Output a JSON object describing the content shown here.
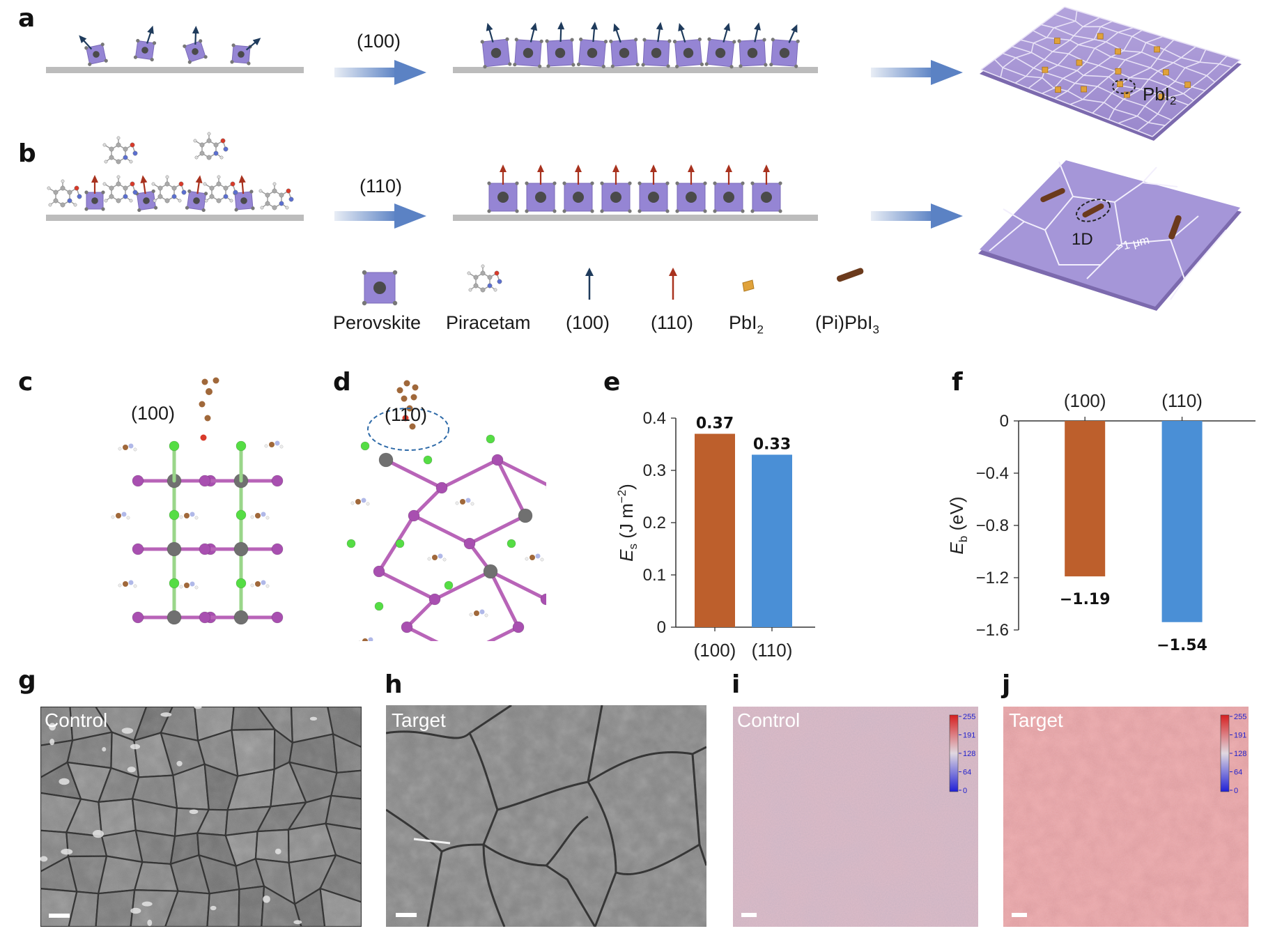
{
  "panels": {
    "a": "a",
    "b": "b",
    "c": "c",
    "d": "d",
    "e": "e",
    "f": "f",
    "g": "g",
    "h": "h",
    "i": "i",
    "j": "j"
  },
  "schematic": {
    "row_a_arrow_label": "(100)",
    "row_b_arrow_label": "(110)",
    "pbi2_label_main": "PbI",
    "pbi2_label_sub": "2",
    "label_1d": "1D",
    "label_grain": ">1 μm"
  },
  "legend": {
    "perovskite": "Perovskite",
    "piracetam": "Piracetam",
    "dir_100": "(100)",
    "dir_110": "(110)",
    "pbi2_main": "PbI",
    "pbi2_sub": "2",
    "pipbi3_main": "(Pi)PbI",
    "pipbi3_sub": "3"
  },
  "structures": {
    "c_label": "(100)",
    "d_label": "(110)"
  },
  "chart_data": [
    {
      "type": "bar",
      "panel": "e",
      "categories": [
        "(100)",
        "(110)"
      ],
      "values": [
        0.37,
        0.33
      ],
      "value_labels": [
        "0.37",
        "0.33"
      ],
      "ylabel_main": "E",
      "ylabel_sub": "s",
      "ylabel_unit": " (J m",
      "ylabel_sup": "−2",
      "ylabel_close": ")",
      "yticks": [
        "0",
        "0.1",
        "0.2",
        "0.3",
        "0.4"
      ],
      "ylim": [
        0,
        0.4
      ],
      "colors": [
        "#bd5f2c",
        "#4a8fd6"
      ]
    },
    {
      "type": "bar",
      "panel": "f",
      "categories": [
        "(100)",
        "(110)"
      ],
      "values": [
        -1.19,
        -1.54
      ],
      "value_labels": [
        "−1.19",
        "−1.54"
      ],
      "ylabel_main": "E",
      "ylabel_sub": "b",
      "ylabel_unit": " (eV)",
      "yticks": [
        "0",
        "−0.4",
        "−0.8",
        "−1.2",
        "−1.6"
      ],
      "ylim": [
        -1.6,
        0
      ],
      "colors": [
        "#bd5f2c",
        "#4a8fd6"
      ]
    }
  ],
  "images": {
    "g_label": "Control",
    "h_label": "Target",
    "i_label": "Control",
    "j_label": "Target",
    "colorbar_ticks": [
      "255",
      "191",
      "128",
      "64",
      "0"
    ]
  }
}
